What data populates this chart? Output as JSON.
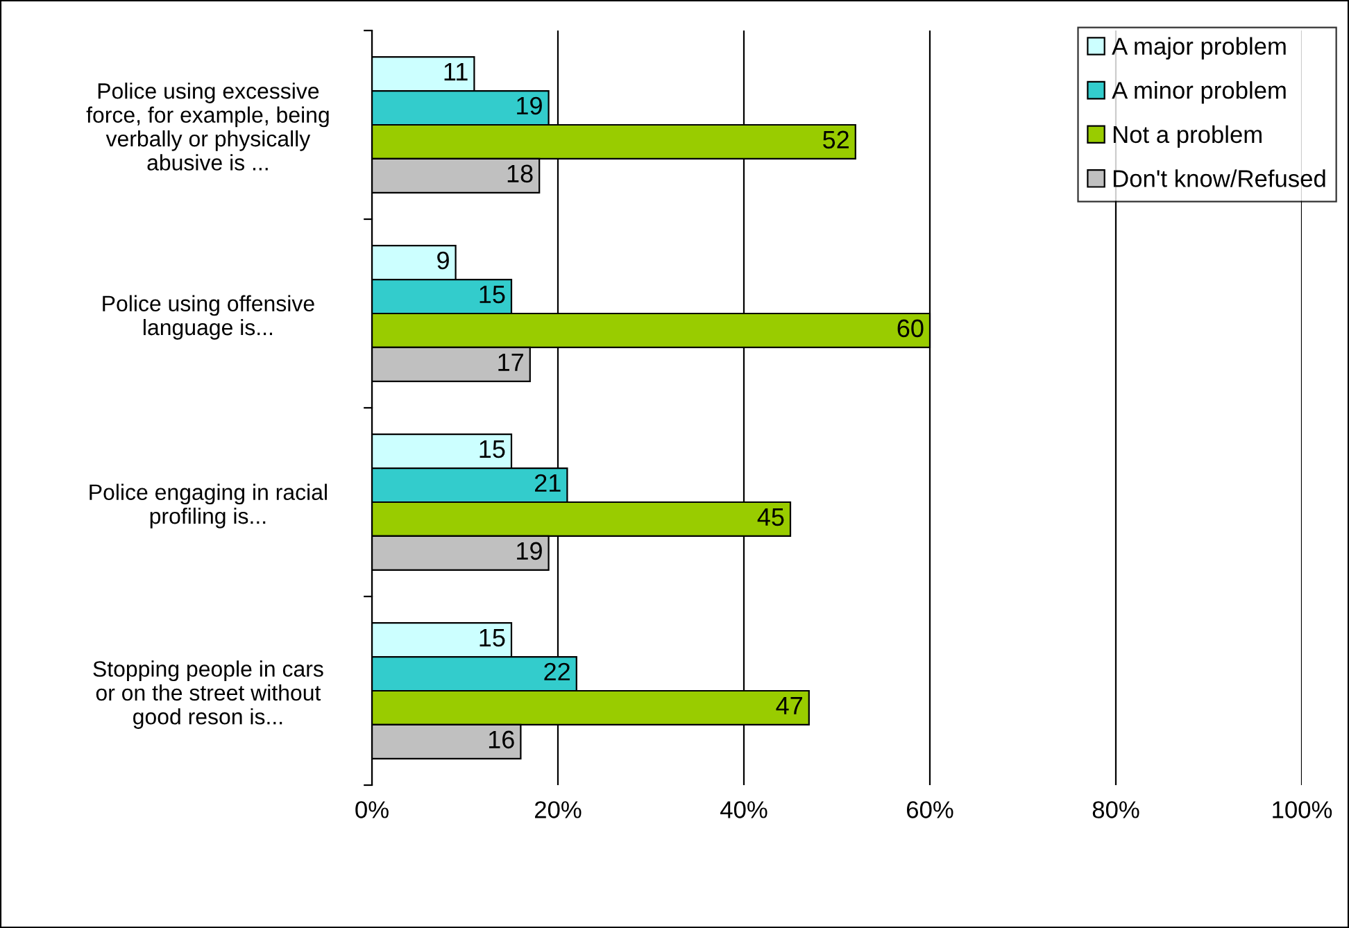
{
  "chart_data": {
    "type": "bar",
    "orientation": "horizontal",
    "categories": [
      "Police using excessive\nforce, for example, being\nverbally or physically\nabusive is ...",
      "Police using offensive\nlanguage is...",
      "Police engaging in racial\nprofiling is...",
      "Stopping people in cars\nor on the street without\ngood reson is..."
    ],
    "series": [
      {
        "name": "A major problem",
        "color": "#ccffff",
        "values": [
          11,
          9,
          15,
          15
        ]
      },
      {
        "name": "A minor problem",
        "color": "#33cccc",
        "values": [
          19,
          15,
          21,
          22
        ]
      },
      {
        "name": "Not a problem",
        "color": "#99cc00",
        "values": [
          52,
          60,
          45,
          47
        ]
      },
      {
        "name": "Don't know/Refused",
        "color": "#c0c0c0",
        "values": [
          18,
          17,
          19,
          16
        ]
      }
    ],
    "xlim": [
      0,
      100
    ],
    "xticks": [
      {
        "value": 0,
        "label": "0%"
      },
      {
        "value": 20,
        "label": "20%"
      },
      {
        "value": 40,
        "label": "40%"
      },
      {
        "value": 60,
        "label": "60%"
      },
      {
        "value": 80,
        "label": "80%"
      },
      {
        "value": 100,
        "label": "100%"
      }
    ],
    "grid": "x",
    "legend": "top right",
    "data_labels": true
  }
}
